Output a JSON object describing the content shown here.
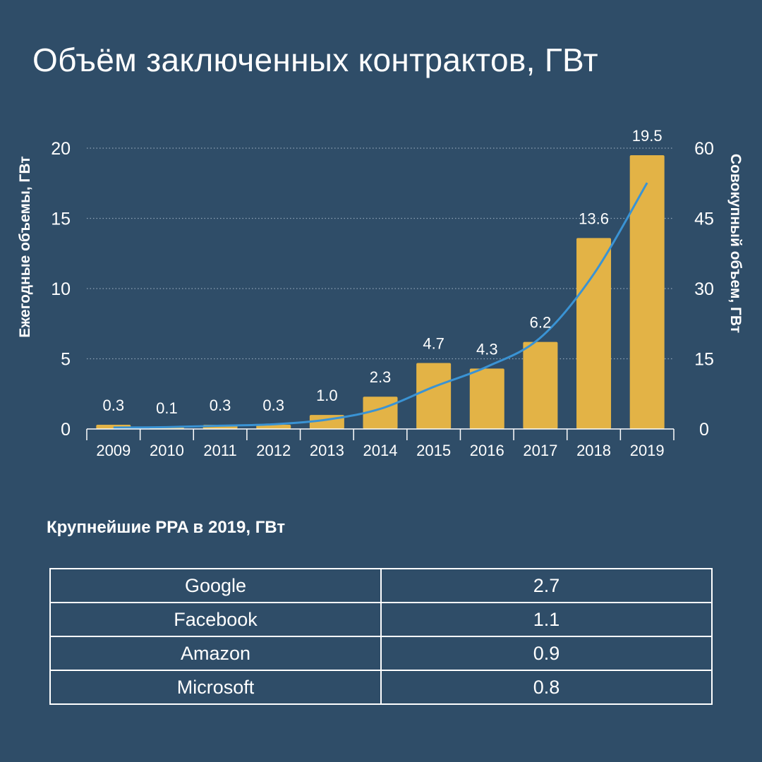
{
  "title": "Объём заключенных контрактов, ГВт",
  "colors": {
    "background": "#2f4d68",
    "bar": "#e3b346",
    "line": "#3a93d4",
    "grid": "#8fa3b6",
    "text": "#ffffff"
  },
  "chart_data": {
    "type": "bar",
    "categories": [
      "2009",
      "2010",
      "2011",
      "2012",
      "2013",
      "2014",
      "2015",
      "2016",
      "2017",
      "2018",
      "2019"
    ],
    "series": [
      {
        "values": [
          0.3,
          0.1,
          0.3,
          0.3,
          1.0,
          2.3,
          4.7,
          4.3,
          6.2,
          13.6,
          19.5
        ],
        "axis": "left",
        "style": "bar"
      },
      {
        "values": [
          0.3,
          0.4,
          0.7,
          1.0,
          2.0,
          4.3,
          9.0,
          13.3,
          19.5,
          33.1,
          52.6
        ],
        "axis": "right",
        "style": "smooth-line"
      }
    ],
    "data_labels": [
      "0.3",
      "0.1",
      "0.3",
      "0.3",
      "1.0",
      "2.3",
      "4.7",
      "4.3",
      "6.2",
      "13.6",
      "19.5"
    ],
    "ylabel": "Ежегодные объемы, ГВт",
    "ylabel_right": "Совокупный объем, ГВт",
    "ylim": [
      0,
      20
    ],
    "ylim_right": [
      0,
      60
    ],
    "yticks": [
      "0",
      "5",
      "10",
      "15",
      "20"
    ],
    "yticks_right": [
      "0",
      "15",
      "30",
      "45",
      "60"
    ],
    "grid": "horizontal-dotted"
  },
  "table": {
    "title": "Крупнейшие PPA в 2019, ГВт",
    "rows": [
      {
        "company": "Google",
        "value": "2.7"
      },
      {
        "company": "Facebook",
        "value": "1.1"
      },
      {
        "company": "Amazon",
        "value": "0.9"
      },
      {
        "company": "Microsoft",
        "value": "0.8"
      }
    ]
  }
}
